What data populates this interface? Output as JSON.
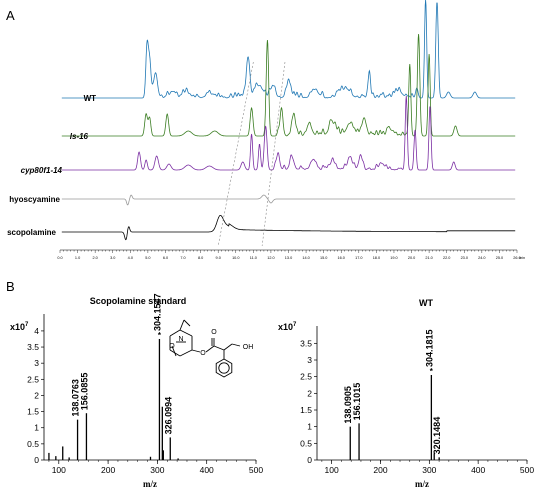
{
  "panel_a": {
    "label": "A",
    "traces": [
      {
        "name": "WT",
        "style": "bold",
        "color": "#1f77b4"
      },
      {
        "name": "ls-16",
        "style": "bold-italic",
        "color": "#3a7d22"
      },
      {
        "name": "cyp80f1-14",
        "style": "bold-italic",
        "color": "#7b2fa3"
      },
      {
        "name": "hyoscyamine",
        "style": "bold",
        "color": "#999999"
      },
      {
        "name": "scopolamine",
        "style": "bold",
        "color": "#000000"
      }
    ],
    "xaxis": {
      "min": 0,
      "max": 26,
      "ticks": [
        "0.0",
        "1.0",
        "2.0",
        "3.0",
        "4.0",
        "5.0",
        "6.0",
        "7.0",
        "8.0",
        "9.0",
        "10.0",
        "11.0",
        "12.0",
        "13.0",
        "14.0",
        "15.0",
        "16.0",
        "17.0",
        "18.0",
        "19.0",
        "20.0",
        "21.0",
        "22.0",
        "23.0",
        "24.0",
        "25.0",
        "26.0"
      ],
      "unit": "min"
    }
  },
  "panel_b": {
    "label": "B",
    "chart_data": [
      {
        "type": "bar",
        "title": "Scopolamine standard",
        "exponent_label": "x10",
        "exponent_sup": "7",
        "xlabel": "m/z",
        "xlim": [
          70,
          500
        ],
        "ylim": [
          0,
          4.4
        ],
        "x_ticks": [
          "100",
          "200",
          "300",
          "400",
          "500"
        ],
        "y_ticks": [
          "0",
          "0.5",
          "1",
          "1.5",
          "2",
          "2.5",
          "3",
          "3.5",
          "4"
        ],
        "peaks": [
          {
            "mz": 80,
            "value": 0.22
          },
          {
            "mz": 94,
            "value": 0.12
          },
          {
            "mz": 108,
            "value": 0.42
          },
          {
            "mz": 121,
            "value": 0.08
          },
          {
            "mz": 138.0763,
            "value": 1.25,
            "label": "138.0763"
          },
          {
            "mz": 156.0855,
            "value": 1.45,
            "label": "156.0855"
          },
          {
            "mz": 286,
            "value": 0.1
          },
          {
            "mz": 304.1547,
            "value": 3.75,
            "label": "304.1547",
            "star": true
          },
          {
            "mz": 310,
            "value": 1.65
          },
          {
            "mz": 312,
            "value": 0.3
          },
          {
            "mz": 326.0994,
            "value": 0.7,
            "label": "326.0994"
          },
          {
            "mz": 342,
            "value": 0.05
          }
        ],
        "structure_label": "OH"
      },
      {
        "type": "bar",
        "title": "WT",
        "exponent_label": "x10",
        "exponent_sup": "7",
        "xlabel": "m/z",
        "xlim": [
          70,
          500
        ],
        "ylim": [
          0,
          3.9
        ],
        "x_ticks": [
          "100",
          "200",
          "300",
          "400",
          "500"
        ],
        "y_ticks": [
          "0",
          "0.5",
          "1",
          "1.5",
          "2",
          "2.5",
          "3",
          "3.5"
        ],
        "peaks": [
          {
            "mz": 138.0905,
            "value": 1.0,
            "label": "138.0905"
          },
          {
            "mz": 156.1015,
            "value": 1.1,
            "label": "156.1015"
          },
          {
            "mz": 304.1815,
            "value": 2.55,
            "label": "304.1815",
            "star": true
          },
          {
            "mz": 310,
            "value": 0.2
          },
          {
            "mz": 320.1484,
            "value": 0.08,
            "label": "320.1484"
          }
        ]
      }
    ]
  }
}
